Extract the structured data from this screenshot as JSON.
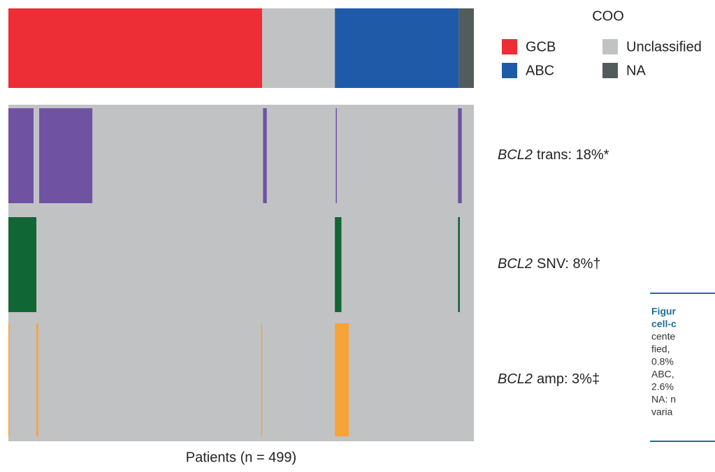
{
  "chart_data": {
    "type": "oncoprint",
    "coo": {
      "title": "COO",
      "series": [
        {
          "name": "GCB",
          "color": "#ee2e36",
          "values": [
            272
          ]
        },
        {
          "name": "Unclassified",
          "color": "#c1c2c4",
          "values": [
            78
          ]
        },
        {
          "name": "ABC",
          "color": "#1f5aa8",
          "values": [
            133
          ]
        },
        {
          "name": "NA",
          "color": "#535c5d",
          "values": [
            16
          ]
        }
      ]
    },
    "xlim": [
      0,
      499
    ],
    "background_color": "#c1c2c4",
    "tracks": [
      {
        "gene": "BCL2",
        "label": "trans: 18%*",
        "color": "#7052a3",
        "events": [
          [
            0,
            27
          ],
          [
            33,
            90
          ],
          [
            273,
            277
          ],
          [
            351,
            352
          ],
          [
            482,
            486
          ]
        ]
      },
      {
        "gene": "BCL2",
        "label": "SNV: 8%†",
        "color": "#116636",
        "events": [
          [
            0,
            30
          ],
          [
            350,
            357
          ],
          [
            482,
            484
          ]
        ]
      },
      {
        "gene": "BCL2",
        "label": "amp: 3%‡",
        "color": "#f7a33a",
        "events": [
          [
            0,
            1
          ],
          [
            30,
            32
          ],
          [
            271,
            272
          ],
          [
            350,
            365
          ]
        ]
      }
    ],
    "xlabel": "Patients (n = 499)"
  },
  "caption": {
    "lines": [
      "Figur",
      "cell-c",
      "cente",
      "fied,",
      "0.8%",
      "ABC,",
      "2.6%",
      "NA: n",
      "varia"
    ]
  }
}
